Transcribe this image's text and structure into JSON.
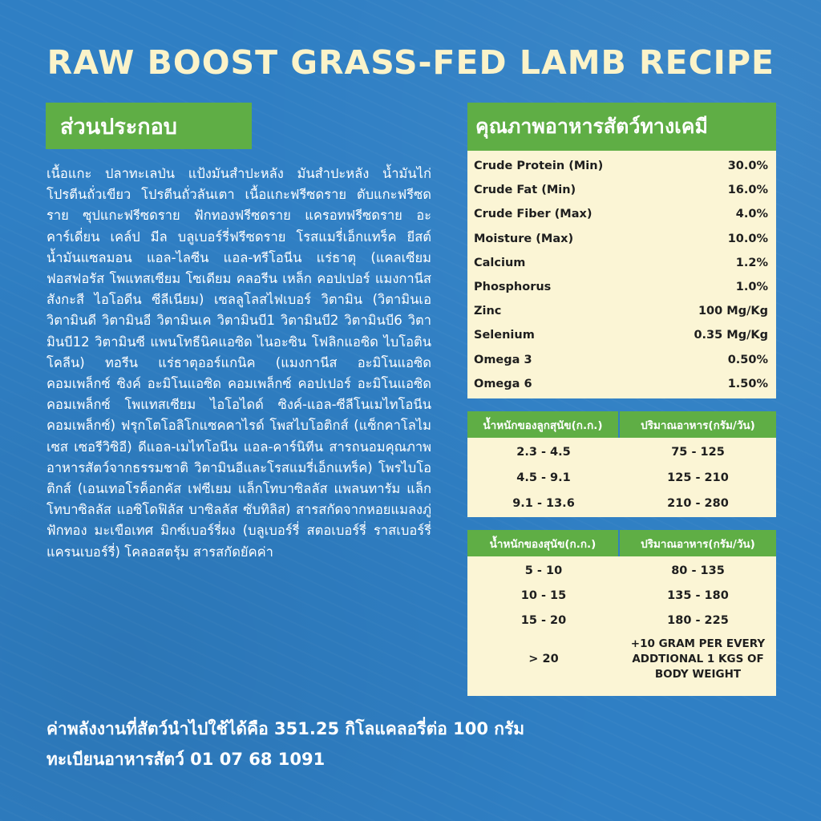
{
  "title": "RAW BOOST GRASS-FED LAMB RECIPE",
  "ingredients": {
    "heading": "ส่วนประกอบ",
    "text": "เนื้อแกะ ปลาทะเลป่น แป้งมันสำปะหลัง มันสำปะหลัง น้ำมันไก่ โปรตีนถั่วเขียว โปรตีนถั่วลันเตา เนื้อแกะฟรีซดราย ตับแกะฟรีซดราย ซุปแกะฟรีซดราย ฟักทองฟรีซดราย แครอทฟรีซดราย อะคาร์เดี่ยน เคล์ป มีล บลูเบอร์รี่ฟรีซดราย โรสแมรี่เอ็กแทร็ค ยีสต์ น้ำมันแซลมอน แอล-ไลซีน แอล-ทรีโอนีน แร่ธาตุ (แคลเซียม ฟอสฟอรัส โพแทสเซียม โซเดียม คลอรีน เหล็ก คอปเปอร์ แมงกานีส สังกะสี ไอโอดีน ซีลีเนียม) เซลลูโลสไฟเบอร์ วิตามิน (วิตามินเอ วิตามินดี วิตามินอี วิตามินเค วิตามินบี1 วิตามินบี2 วิตามินบี6 วิตามินบี12 วิตามินซี แพนโทธีนิคแอซิด ไนอะซิน โฟลิกแอซิด ไบโอติน โคลีน) ทอรีน แร่ธาตุออร์แกนิค (แมงกานีส อะมิโนแอซิด คอมเพล็กซ์ ซิงค์ อะมิโนแอซิด คอมเพล็กซ์ คอปเปอร์ อะมิโนแอซิด คอมเพล็กซ์ โพแทสเซียม ไอโอไดด์ ซิงค์-แอล-ซีลีโนเมไทโอนีน คอมเพล็กซ์) ฟรุกโตโอลิโกแซคคาไรด์ โพสไบโอติกส์ (แซ็กคาโลไมเซส เซอรีวิซิอี) ดีแอล-เมไทโอนีน แอล-คาร์นิทีน สารถนอมคุณภาพอาหารสัตว์จากธรรมชาติ วิตามินอีและโรสแมรี่เอ็กแทร็ค) โพรไบโอติกส์ (เอนเทอโรค็อกคัส เฟซีเยม แล็กโทบาซิลลัส แพลนทารัม แล็กโทบาซิลลัส แอซิโดฟิลัส บาซิลลัส ซับทิลิส) สารสกัดจากหอยแมลงภู่ ฟักทอง มะเขือเทศ มิกซ์เบอร์รี่ผง (บลูเบอร์รี่ สตอเบอร์รี่ ราสเบอร์รี่ แครนเบอร์รี่) โคลอสตรุ้ม สารสกัดยัคค่า"
  },
  "analysis": {
    "heading": "คุณภาพอาหารสัตว์ทางเคมี",
    "rows": [
      {
        "label": "Crude Protein (Min)",
        "value": "30.0%"
      },
      {
        "label": "Crude Fat (Min)",
        "value": "16.0%"
      },
      {
        "label": "Crude Fiber (Max)",
        "value": "4.0%"
      },
      {
        "label": "Moisture (Max)",
        "value": "10.0%"
      },
      {
        "label": "Calcium",
        "value": "1.2%"
      },
      {
        "label": "Phosphorus",
        "value": "1.0%"
      },
      {
        "label": "Zinc",
        "value": "100 Mg/Kg"
      },
      {
        "label": "Selenium",
        "value": "0.35 Mg/Kg"
      },
      {
        "label": "Omega 3",
        "value": "0.50%"
      },
      {
        "label": "Omega 6",
        "value": "1.50%"
      }
    ]
  },
  "puppy_feeding": {
    "col1": "น้ำหนักของลูกสุนัข(ก.ก.)",
    "col2": "ปริมาณอาหาร(กรัม/วัน)",
    "rows": [
      {
        "weight": "2.3 - 4.5",
        "amount": "75 - 125"
      },
      {
        "weight": "4.5 - 9.1",
        "amount": "125 - 210"
      },
      {
        "weight": "9.1 - 13.6",
        "amount": "210 - 280"
      }
    ]
  },
  "adult_feeding": {
    "col1": "น้ำหนักของสุนัข(ก.ก.)",
    "col2": "ปริมาณอาหาร(กรัม/วัน)",
    "rows": [
      {
        "weight": "5 - 10",
        "amount": "80 - 135"
      },
      {
        "weight": "10 - 15",
        "amount": "135 - 180"
      },
      {
        "weight": "15 - 20",
        "amount": "180 - 225"
      },
      {
        "weight": "> 20",
        "amount": "+10 GRAM PER EVERY ADDTIONAL 1 KGS OF BODY WEIGHT"
      }
    ]
  },
  "footer": {
    "energy": "ค่าพลังงานที่สัตว์นำไปใช้ได้คือ 351.25 กิโลแคลอรี่ต่อ 100 กรัม",
    "registration": "ทะเบียนอาหารสัตว์ 01 07 68 1091"
  },
  "colors": {
    "background": "#2f7fc4",
    "green": "#5fae45",
    "cream": "#fbf5d5",
    "title": "#fbf3c9"
  }
}
